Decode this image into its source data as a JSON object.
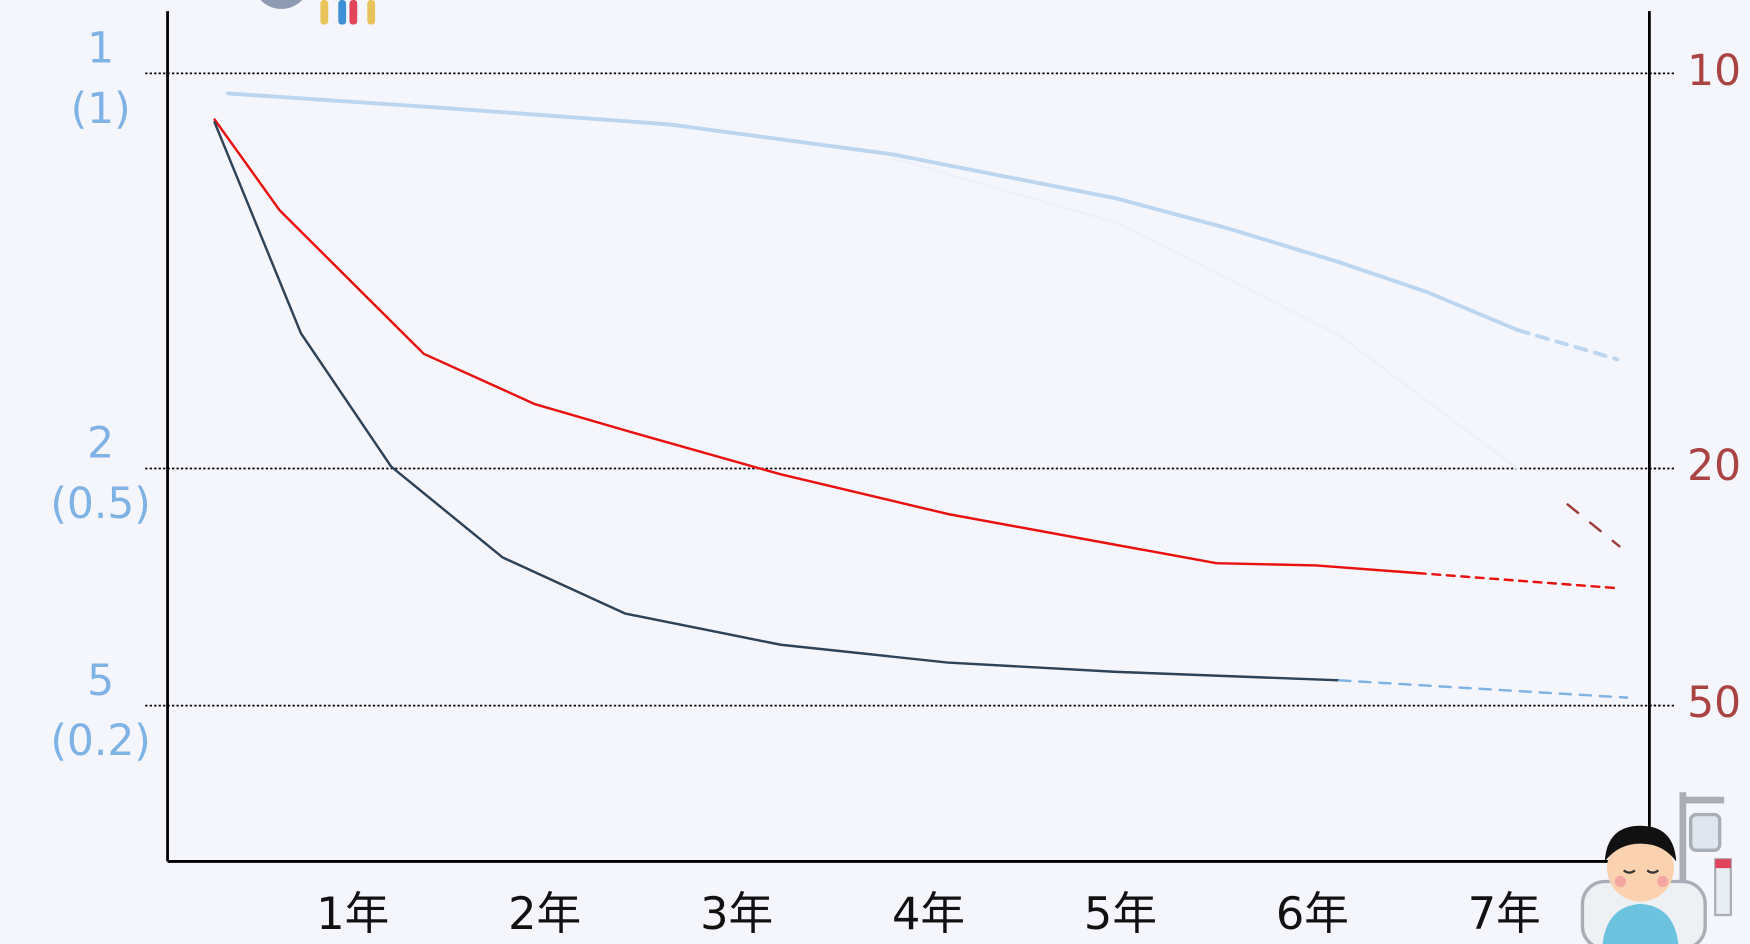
{
  "chart_data": {
    "type": "line",
    "xlim": [
      0.035,
      7.756
    ],
    "xticks": [
      {
        "value": 1,
        "label": "1年"
      },
      {
        "value": 2,
        "label": "2年"
      },
      {
        "value": 3,
        "label": "3年"
      },
      {
        "value": 4,
        "label": "4年"
      },
      {
        "value": 5,
        "label": "5年"
      },
      {
        "value": 6,
        "label": "6年"
      },
      {
        "value": 7,
        "label": "7年"
      }
    ],
    "yscale": "reciprocal",
    "ylim": [
      0.927,
      354
    ],
    "yticks": [
      {
        "value": 1,
        "label": "1",
        "sublabel": "(1)"
      },
      {
        "value": 2,
        "label": "2",
        "sublabel": "(0.5)"
      },
      {
        "value": 5,
        "label": "5",
        "sublabel": "(0.2)"
      }
    ],
    "y2lim": [
      9.27,
      3540
    ],
    "y2ticks": [
      10,
      20,
      50
    ],
    "grid": true,
    "series": [
      {
        "color": "#bcd6ef",
        "dashed": false,
        "x": [
          0.35,
          1.49,
          2.65,
          3.81,
          4.98,
          5.56,
          6.14,
          6.6,
          7.07
        ],
        "values": [
          1.026,
          1.046,
          1.069,
          1.114,
          1.188,
          1.244,
          1.314,
          1.383,
          1.481
        ]
      },
      {
        "color": "#bcd6ef",
        "dashed": true,
        "x": [
          7.07,
          7.59
        ],
        "values": [
          1.481,
          1.567
        ]
      },
      {
        "color": "#eef0fa",
        "dashed": false,
        "x": [
          3.81,
          4.98,
          6.14,
          7.07
        ],
        "values": [
          1.12,
          1.233,
          1.495,
          2.0
        ]
      },
      {
        "color": "#9c3d3a",
        "dashed": true,
        "x": [
          7.33,
          7.6
        ],
        "values": [
          2.2,
          2.49
        ]
      },
      {
        "color": "#e8110f",
        "dashed": false,
        "x": [
          0.28,
          0.62,
          1.37,
          1.95,
          2.53,
          3.23,
          4.1,
          4.98,
          5.5,
          6.02,
          6.55
        ],
        "values": [
          1.062,
          1.21,
          1.55,
          1.72,
          1.85,
          2.03,
          2.26,
          2.48,
          2.63,
          2.65,
          2.72
        ]
      },
      {
        "color": "#e8110f",
        "dashed": true,
        "x": [
          6.55,
          7.6
        ],
        "values": [
          2.72,
          2.87
        ]
      },
      {
        "color": "#2e4258",
        "dashed": false,
        "x": [
          0.28,
          0.73,
          1.2,
          1.78,
          2.42,
          3.23,
          4.1,
          4.98,
          6.14
        ],
        "values": [
          1.066,
          1.49,
          1.99,
          2.58,
          3.16,
          3.61,
          3.93,
          4.12,
          4.31
        ]
      },
      {
        "color": "#7fb2e5",
        "dashed": true,
        "x": [
          6.14,
          7.64
        ],
        "values": [
          4.31,
          4.76
        ]
      }
    ]
  }
}
